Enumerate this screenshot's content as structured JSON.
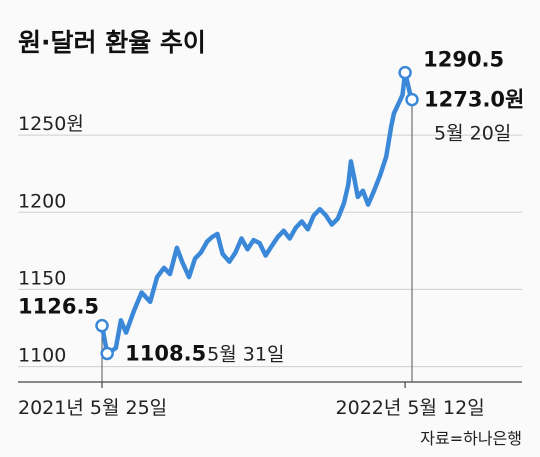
{
  "title": "원·달러 환율 추이",
  "source": "자료=하나은행",
  "colors": {
    "line": "#3b88d8",
    "grid": "#cfcfcf",
    "marker_fill": "#ffffff",
    "text": "#222222"
  },
  "chart_data": {
    "type": "line",
    "title": "원·달러 환율 추이",
    "xlabel": "",
    "ylabel": "",
    "ylim": [
      1090,
      1300
    ],
    "x_range": [
      "2021-05-25",
      "2022-05-20"
    ],
    "y_ticks": [
      {
        "value": 1250,
        "label": "1250원"
      },
      {
        "value": 1200,
        "label": "1200"
      },
      {
        "value": 1150,
        "label": "1150"
      },
      {
        "value": 1100,
        "label": "1100"
      }
    ],
    "x_ticks": [
      {
        "date": "2021-05-25",
        "label": "2021년 5월 25일"
      },
      {
        "date": "2022-05-12",
        "label": "2022년 5월 12일"
      }
    ],
    "grid": true,
    "series": [
      {
        "x": [
          "2021-05-25",
          "2021-05-31",
          "2021-06-10",
          "2021-06-16",
          "2021-06-22",
          "2021-07-01",
          "2021-07-10",
          "2021-07-20",
          "2021-07-28",
          "2021-08-05",
          "2021-08-12",
          "2021-08-20",
          "2021-08-26",
          "2021-09-03",
          "2021-09-10",
          "2021-09-17",
          "2021-09-24",
          "2021-09-30",
          "2021-10-06",
          "2021-10-12",
          "2021-10-20",
          "2021-10-27",
          "2021-11-03",
          "2021-11-10",
          "2021-11-17",
          "2021-11-24",
          "2021-12-01",
          "2021-12-08",
          "2021-12-15",
          "2021-12-22",
          "2021-12-29",
          "2022-01-05",
          "2022-01-12",
          "2022-01-19",
          "2022-01-26",
          "2022-02-02",
          "2022-02-09",
          "2022-02-16",
          "2022-02-23",
          "2022-03-02",
          "2022-03-07",
          "2022-03-10",
          "2022-03-14",
          "2022-03-18",
          "2022-03-24",
          "2022-03-30",
          "2022-04-06",
          "2022-04-13",
          "2022-04-20",
          "2022-04-26",
          "2022-04-29",
          "2022-05-04",
          "2022-05-09",
          "2022-05-12",
          "2022-05-16",
          "2022-05-18",
          "2022-05-20"
        ],
        "values": [
          1126.5,
          1108.5,
          1112,
          1130,
          1122,
          1136,
          1148,
          1142,
          1158,
          1164,
          1160,
          1177,
          1168,
          1158,
          1170,
          1174,
          1181,
          1184,
          1186,
          1173,
          1168,
          1174,
          1183,
          1176,
          1182,
          1180,
          1172,
          1178,
          1184,
          1188,
          1183,
          1190,
          1194,
          1189,
          1198,
          1202,
          1198,
          1192,
          1196,
          1206,
          1218,
          1233,
          1222,
          1210,
          1214,
          1205,
          1214,
          1224,
          1236,
          1256,
          1264,
          1270,
          1276,
          1290.5,
          1281,
          1276,
          1273.0
        ]
      }
    ],
    "annotations": [
      {
        "date": "2021-05-25",
        "value": 1126.5,
        "label": "1126.5"
      },
      {
        "date": "2021-05-31",
        "value": 1108.5,
        "label": "1108.5",
        "date_label": "5월 31일"
      },
      {
        "date": "2022-05-12",
        "value": 1290.5,
        "label": "1290.5"
      },
      {
        "date": "2022-05-20",
        "value": 1273.0,
        "label": "1273.0원",
        "date_label": "5월 20일"
      }
    ]
  }
}
